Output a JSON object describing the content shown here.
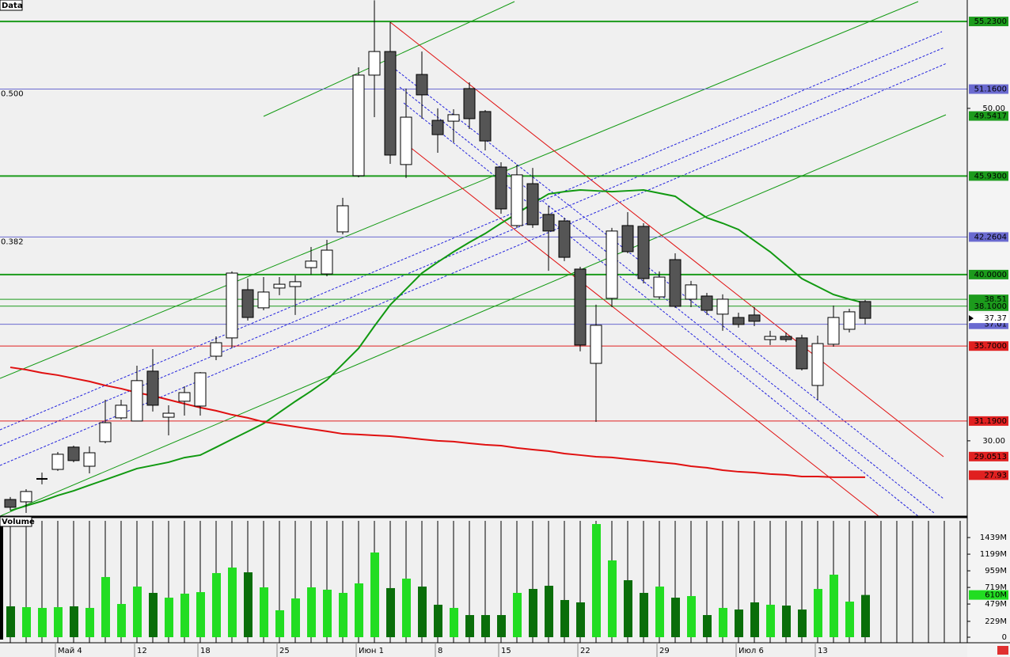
{
  "chart_data": {
    "type": "candlestick",
    "title": "Data",
    "categories": [
      null,
      null,
      null,
      "Май 4",
      null,
      null,
      null,
      null,
      "12",
      null,
      null,
      null,
      "18",
      null,
      null,
      null,
      null,
      "25",
      null,
      null,
      null,
      null,
      "Июн 1",
      null,
      null,
      null,
      null,
      "8",
      null,
      null,
      null,
      "15",
      null,
      null,
      null,
      null,
      "22",
      null,
      null,
      null,
      null,
      "29",
      null,
      null,
      null,
      null,
      "Июл 6",
      null,
      null,
      null,
      null,
      "13",
      null,
      null,
      null
    ],
    "open": [
      26.47,
      26.33,
      27.71,
      28.28,
      29.62,
      28.47,
      29.95,
      31.38,
      31.19,
      34.19,
      31.42,
      32.38,
      32.09,
      35.09,
      36.19,
      39.09,
      38.0,
      39.19,
      39.28,
      40.42,
      40.04,
      42.57,
      45.95,
      52.0,
      53.42,
      46.62,
      52.04,
      49.28,
      49.23,
      51.19,
      49.81,
      46.47,
      42.95,
      45.47,
      43.62,
      43.23,
      40.33,
      34.66,
      38.57,
      42.95,
      42.9,
      38.66,
      40.9,
      38.52,
      38.71,
      37.62,
      37.42,
      37.57,
      36.09,
      36.28,
      36.19,
      33.33,
      35.81,
      36.71,
      38.38
    ],
    "high": [
      26.62,
      27.09,
      28.09,
      29.33,
      29.71,
      29.66,
      32.47,
      32.47,
      34.52,
      35.52,
      32.14,
      33.28,
      34.14,
      36.28,
      40.19,
      39.76,
      39.85,
      39.85,
      39.95,
      41.66,
      42.09,
      44.62,
      52.47,
      56.5,
      55.19,
      51.19,
      53.42,
      50.0,
      49.95,
      51.57,
      49.9,
      46.76,
      46.62,
      46.42,
      44.14,
      43.42,
      40.47,
      38.19,
      42.81,
      43.76,
      43.09,
      40.19,
      41.28,
      39.62,
      38.9,
      38.81,
      37.71,
      38.04,
      36.62,
      36.52,
      36.38,
      36.33,
      38.14,
      37.95,
      38.47
    ],
    "low": [
      25.81,
      25.66,
      27.38,
      28.19,
      28.71,
      28.04,
      29.85,
      31.28,
      31.19,
      31.76,
      30.33,
      31.52,
      31.52,
      34.85,
      35.57,
      37.23,
      37.85,
      38.76,
      37.57,
      40.0,
      39.9,
      42.42,
      45.85,
      49.47,
      46.66,
      45.81,
      49.38,
      47.33,
      47.95,
      48.76,
      47.47,
      43.66,
      42.81,
      42.81,
      40.23,
      40.81,
      35.38,
      31.14,
      38.04,
      41.28,
      39.47,
      38.52,
      38.0,
      38.04,
      37.57,
      36.62,
      36.81,
      36.9,
      35.76,
      35.95,
      34.23,
      32.47,
      35.66,
      36.52,
      37.0
    ],
    "close": [
      26.0,
      26.95,
      27.71,
      29.19,
      28.81,
      29.28,
      31.09,
      32.14,
      33.62,
      32.14,
      31.66,
      32.9,
      34.09,
      35.9,
      40.09,
      37.42,
      38.95,
      39.42,
      39.57,
      40.81,
      41.47,
      44.14,
      52.0,
      53.42,
      47.19,
      49.47,
      50.81,
      48.42,
      49.62,
      49.38,
      48.04,
      43.95,
      46.0,
      43.0,
      42.62,
      41.04,
      35.76,
      36.95,
      42.62,
      41.38,
      39.76,
      39.85,
      38.09,
      39.38,
      37.85,
      38.52,
      37.0,
      37.19,
      36.28,
      36.09,
      34.33,
      35.85,
      37.42,
      37.76,
      37.37
    ],
    "up_color": "#ffffff",
    "down_color": "#555555",
    "ylim": [
      25.47,
      56.52
    ],
    "yticks": [
      {
        "value": 50,
        "label": "50.00"
      },
      {
        "value": 30,
        "label": "30.00"
      }
    ],
    "overlays": [
      {
        "color": "#119911",
        "values": [
          25.8,
          26.09,
          26.37,
          26.71,
          26.99,
          27.33,
          27.66,
          27.99,
          28.33,
          28.52,
          28.71,
          28.99,
          29.14,
          29.61,
          30.09,
          30.56,
          31.04,
          31.71,
          32.37,
          32.99,
          33.66,
          34.61,
          35.56,
          36.9,
          38.18,
          39.13,
          40.09,
          40.75,
          41.37,
          41.94,
          42.47,
          43.09,
          43.66,
          44.28,
          44.85,
          44.99,
          45.09,
          45.04,
          44.99,
          45.04,
          45.09,
          44.9,
          44.71,
          44.04,
          43.42,
          43.09,
          42.71,
          42.04,
          41.37,
          40.56,
          39.76,
          39.28,
          38.8,
          38.52,
          38.28
        ]
      },
      {
        "color": "#e01010",
        "values": [
          34.42,
          34.28,
          34.09,
          33.95,
          33.76,
          33.57,
          33.33,
          33.14,
          32.9,
          32.71,
          32.47,
          32.23,
          32.0,
          31.81,
          31.57,
          31.38,
          31.14,
          31.0,
          30.85,
          30.71,
          30.57,
          30.42,
          30.38,
          30.33,
          30.28,
          30.19,
          30.09,
          30.0,
          29.95,
          29.85,
          29.76,
          29.71,
          29.57,
          29.47,
          29.38,
          29.23,
          29.14,
          29.04,
          29.0,
          28.9,
          28.81,
          28.71,
          28.62,
          28.47,
          28.38,
          28.23,
          28.14,
          28.09,
          28.0,
          27.95,
          27.85,
          27.85,
          27.81,
          27.81,
          27.81
        ]
      }
    ],
    "levels": [
      {
        "value": 55.23,
        "label": "55.2300",
        "color": "#1c9b1c",
        "style": "thick"
      },
      {
        "value": 51.16,
        "label": "51.1600",
        "color": "#6a6ad0",
        "style": "thin",
        "fib": "0.500"
      },
      {
        "value": 49.5417,
        "label": "49.5417",
        "color": "#1c9b1c",
        "style": "none"
      },
      {
        "value": 45.93,
        "label": "45.9300",
        "color": "#1c9b1c",
        "style": "thick"
      },
      {
        "value": 42.2604,
        "label": "42.2604",
        "color": "#6a6ad0",
        "style": "thin",
        "fib": "0.382"
      },
      {
        "value": 40.0,
        "label": "40.0000",
        "color": "#1c9b1c",
        "style": "thick"
      },
      {
        "value": 38.51,
        "color": "#1c9b1c",
        "style": "thin"
      },
      {
        "value": 38.1,
        "label": "38.1000",
        "color": "#1c9b1c",
        "style": "thin"
      },
      {
        "value": 37.01,
        "color": "#6a6ad0",
        "style": "thin"
      },
      {
        "value": 35.7,
        "label": "35.7000",
        "color": "#e02020",
        "style": "thin"
      },
      {
        "value": 31.19,
        "label": "31.1900",
        "color": "#e02020",
        "style": "thin"
      },
      {
        "value": 29.0513,
        "label": "29.0513",
        "color": "#e02020",
        "style": "none"
      },
      {
        "value": 27.93,
        "color": "#e02020",
        "style": "none"
      }
    ],
    "volume": {
      "title": "Volume",
      "values": [
        446,
        434,
        423,
        434,
        446,
        423,
        869,
        480,
        731,
        640,
        571,
        629,
        651,
        926,
        1006,
        937,
        720,
        389,
        560,
        720,
        686,
        640,
        777,
        1223,
        709,
        846,
        731,
        469,
        423,
        320,
        320,
        320,
        640,
        697,
        743,
        537,
        503,
        1634,
        1109,
        823,
        640,
        731,
        571,
        594,
        320,
        423,
        400,
        503,
        469,
        457,
        400,
        697,
        903,
        514,
        610
      ],
      "last_label": "610M",
      "up_color": "#22dd22",
      "down_color": "#0a6e0a",
      "ylim": [
        0,
        1680
      ],
      "yticks": [
        0,
        {
          "value": 229,
          "label": "229M"
        },
        {
          "value": 479,
          "label": "479M"
        },
        {
          "value": 719,
          "label": "719M"
        },
        {
          "value": 959,
          "label": "959M"
        },
        {
          "value": 1199,
          "label": "1199M"
        },
        {
          "value": 1439,
          "label": "1439M"
        }
      ]
    }
  }
}
